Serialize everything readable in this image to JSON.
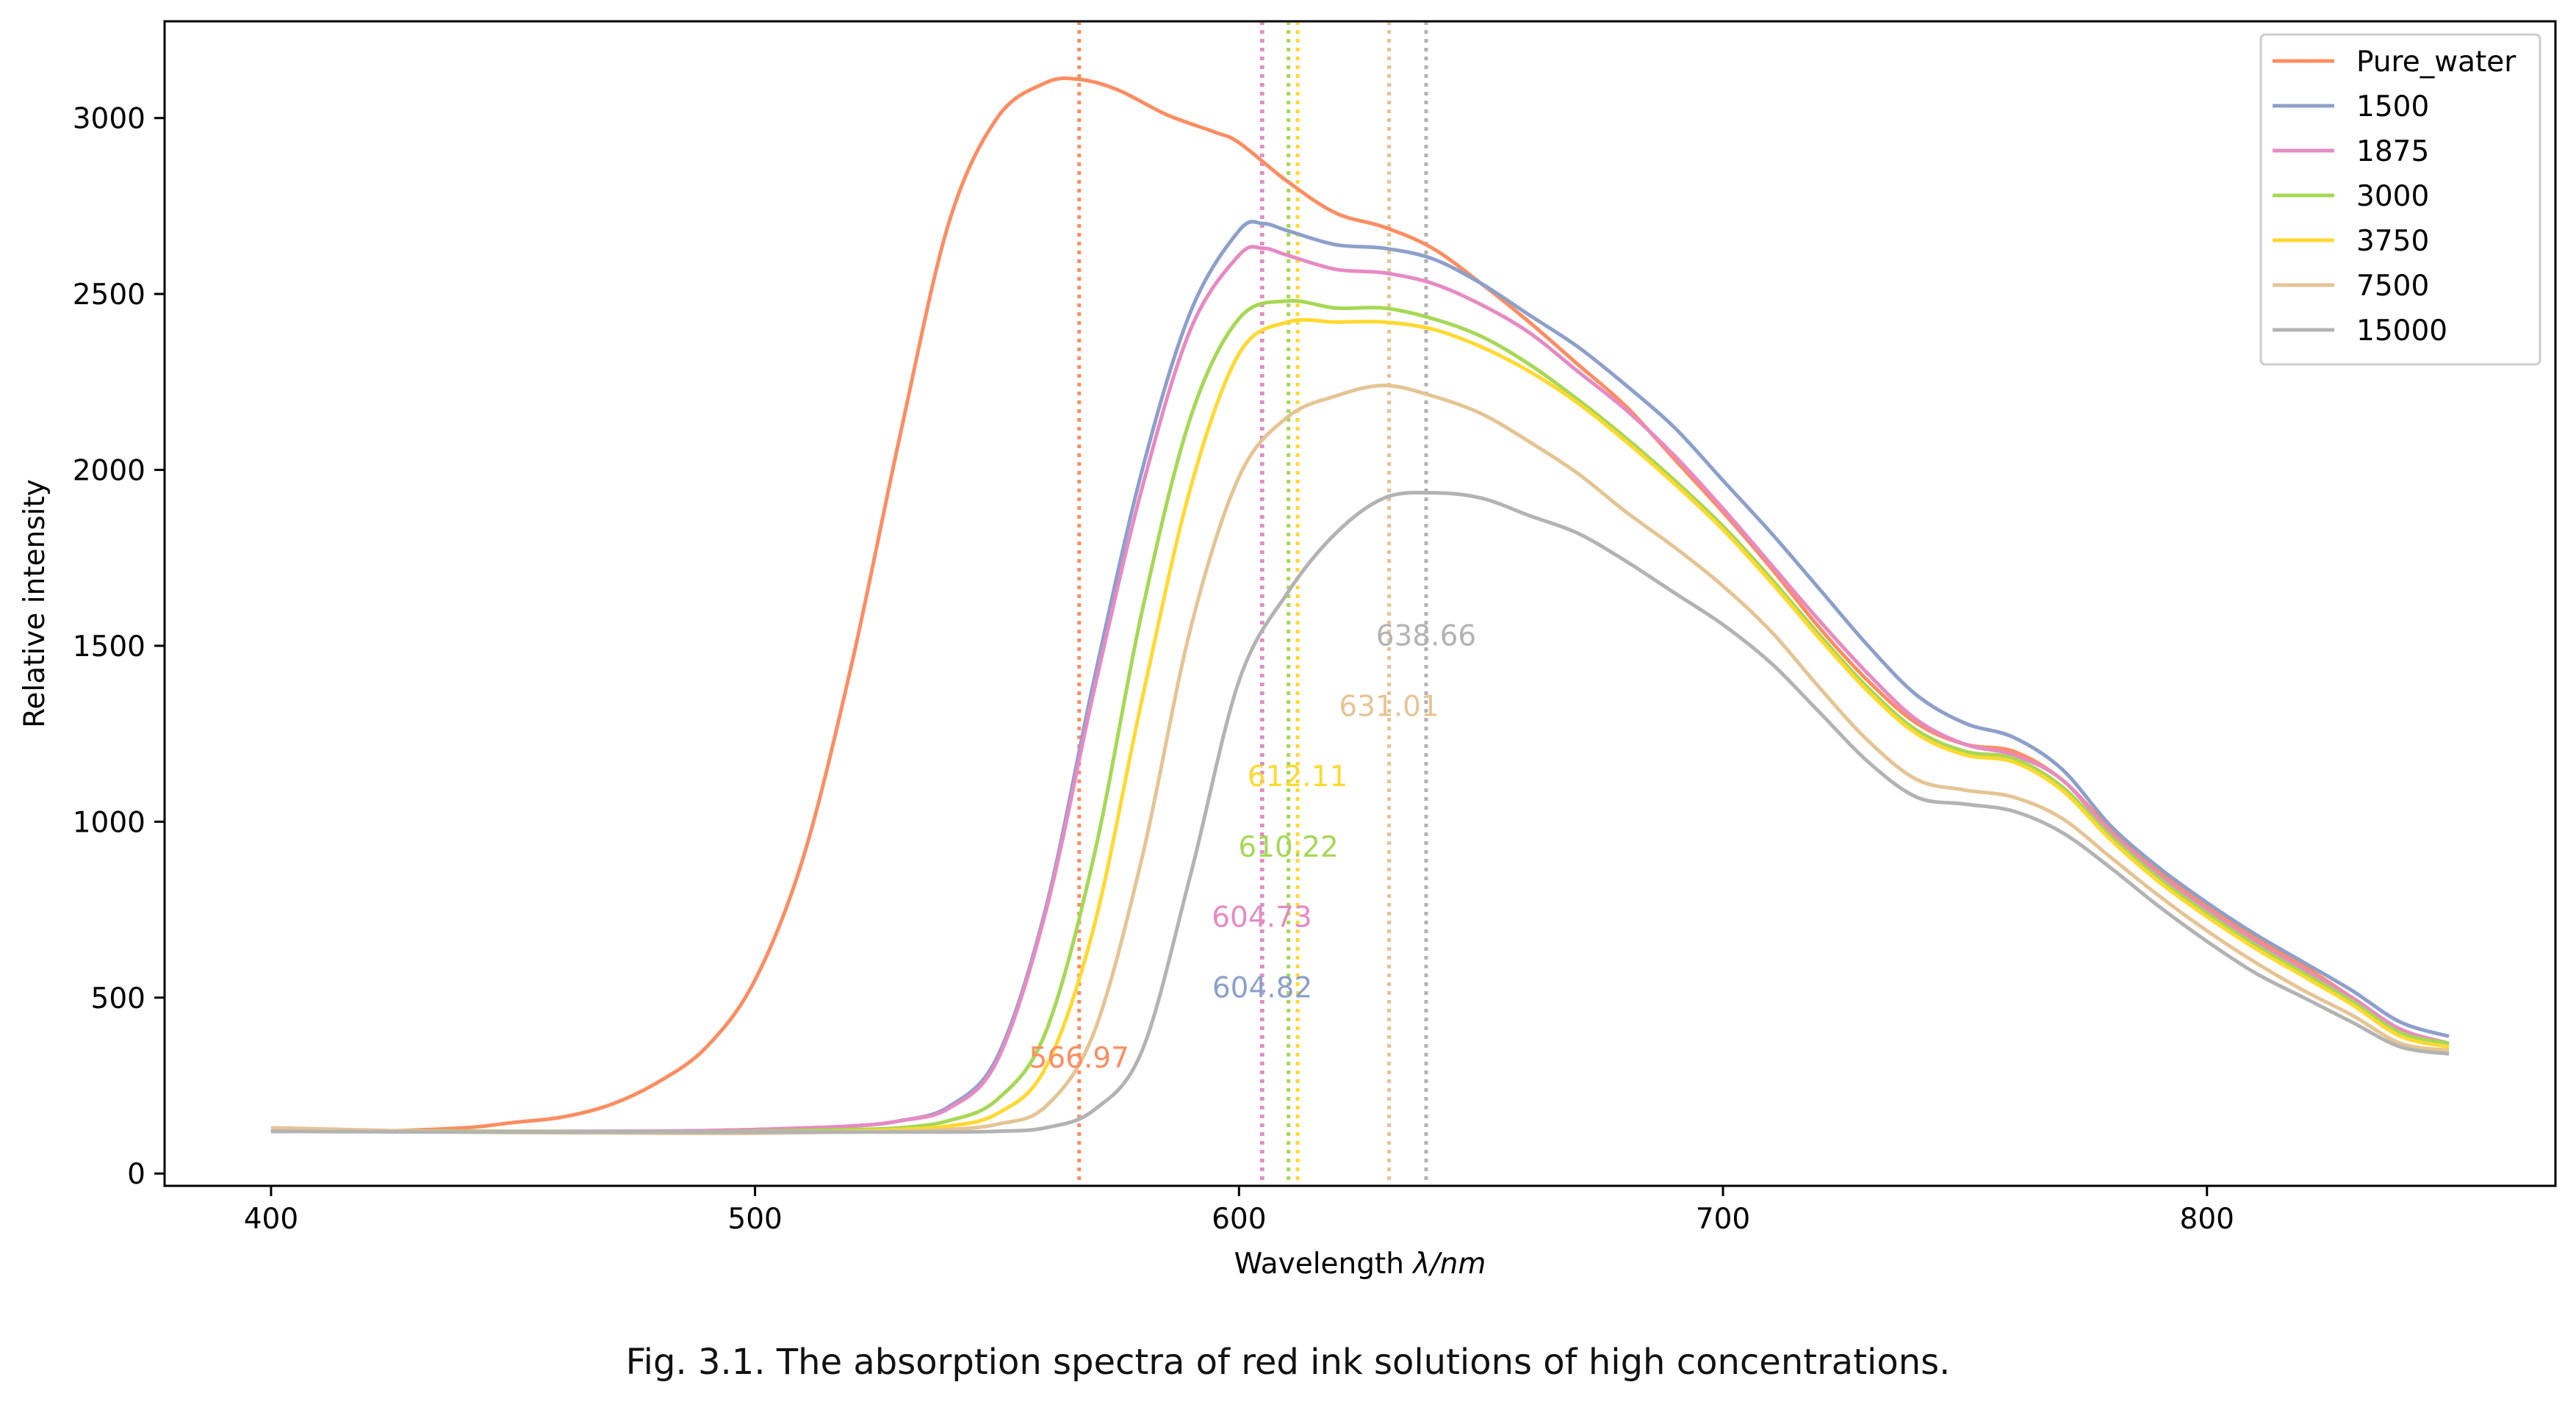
{
  "caption": "Fig. 3.1. The absorption spectra of red ink solutions of high concentrations.",
  "chart_data": {
    "type": "line",
    "title": "",
    "xlabel": "Wavelength λ/nm",
    "xlabel_plain": "Wavelength ",
    "xlabel_math": "λ/nm",
    "ylabel": "Relative intensity",
    "xlim": [
      378,
      872
    ],
    "ylim": [
      -35,
      3275
    ],
    "xticks": [
      400,
      500,
      600,
      700,
      800
    ],
    "yticks": [
      0,
      500,
      1000,
      1500,
      2000,
      2500,
      3000
    ],
    "grid": false,
    "legend_position": "top-right",
    "series": [
      {
        "name": "Pure_water",
        "color": "#fc8d62",
        "peak": 566.97,
        "peak_label": "566.97",
        "label_y": 330,
        "points": [
          [
            400,
            120
          ],
          [
            420,
            120
          ],
          [
            440,
            130
          ],
          [
            450,
            145
          ],
          [
            460,
            160
          ],
          [
            470,
            195
          ],
          [
            480,
            260
          ],
          [
            490,
            360
          ],
          [
            500,
            550
          ],
          [
            510,
            900
          ],
          [
            520,
            1450
          ],
          [
            530,
            2100
          ],
          [
            540,
            2700
          ],
          [
            550,
            3000
          ],
          [
            560,
            3100
          ],
          [
            567,
            3110
          ],
          [
            575,
            3080
          ],
          [
            585,
            3010
          ],
          [
            595,
            2960
          ],
          [
            600,
            2930
          ],
          [
            610,
            2820
          ],
          [
            620,
            2730
          ],
          [
            630,
            2690
          ],
          [
            640,
            2630
          ],
          [
            650,
            2530
          ],
          [
            660,
            2420
          ],
          [
            670,
            2300
          ],
          [
            680,
            2180
          ],
          [
            690,
            2030
          ],
          [
            700,
            1880
          ],
          [
            710,
            1720
          ],
          [
            720,
            1550
          ],
          [
            730,
            1400
          ],
          [
            740,
            1280
          ],
          [
            750,
            1220
          ],
          [
            760,
            1200
          ],
          [
            770,
            1120
          ],
          [
            780,
            980
          ],
          [
            790,
            860
          ],
          [
            800,
            760
          ],
          [
            810,
            670
          ],
          [
            820,
            590
          ],
          [
            830,
            500
          ],
          [
            840,
            410
          ],
          [
            850,
            370
          ]
        ]
      },
      {
        "name": "1500",
        "color": "#8da0cb",
        "peak": 604.82,
        "peak_label": "604.82",
        "label_y": 530,
        "points": [
          [
            400,
            120
          ],
          [
            440,
            120
          ],
          [
            480,
            120
          ],
          [
            500,
            125
          ],
          [
            520,
            135
          ],
          [
            530,
            150
          ],
          [
            540,
            190
          ],
          [
            550,
            330
          ],
          [
            560,
            750
          ],
          [
            570,
            1400
          ],
          [
            580,
            2000
          ],
          [
            590,
            2450
          ],
          [
            600,
            2680
          ],
          [
            605,
            2700
          ],
          [
            610,
            2680
          ],
          [
            620,
            2640
          ],
          [
            630,
            2630
          ],
          [
            640,
            2600
          ],
          [
            650,
            2530
          ],
          [
            660,
            2440
          ],
          [
            670,
            2350
          ],
          [
            680,
            2240
          ],
          [
            690,
            2120
          ],
          [
            700,
            1970
          ],
          [
            710,
            1820
          ],
          [
            720,
            1660
          ],
          [
            730,
            1500
          ],
          [
            740,
            1360
          ],
          [
            750,
            1280
          ],
          [
            760,
            1240
          ],
          [
            770,
            1150
          ],
          [
            780,
            990
          ],
          [
            790,
            870
          ],
          [
            800,
            770
          ],
          [
            810,
            680
          ],
          [
            820,
            600
          ],
          [
            830,
            520
          ],
          [
            840,
            430
          ],
          [
            850,
            390
          ]
        ]
      },
      {
        "name": "1875",
        "color": "#e78ac3",
        "peak": 604.73,
        "peak_label": "604.73",
        "label_y": 730,
        "points": [
          [
            400,
            125
          ],
          [
            440,
            120
          ],
          [
            480,
            120
          ],
          [
            500,
            125
          ],
          [
            520,
            135
          ],
          [
            530,
            150
          ],
          [
            540,
            185
          ],
          [
            550,
            320
          ],
          [
            560,
            740
          ],
          [
            570,
            1370
          ],
          [
            580,
            1950
          ],
          [
            590,
            2400
          ],
          [
            600,
            2610
          ],
          [
            605,
            2630
          ],
          [
            610,
            2610
          ],
          [
            620,
            2570
          ],
          [
            630,
            2560
          ],
          [
            640,
            2530
          ],
          [
            650,
            2470
          ],
          [
            660,
            2390
          ],
          [
            670,
            2280
          ],
          [
            680,
            2170
          ],
          [
            690,
            2040
          ],
          [
            700,
            1890
          ],
          [
            710,
            1730
          ],
          [
            720,
            1570
          ],
          [
            730,
            1420
          ],
          [
            740,
            1290
          ],
          [
            750,
            1220
          ],
          [
            760,
            1190
          ],
          [
            770,
            1120
          ],
          [
            780,
            970
          ],
          [
            790,
            850
          ],
          [
            800,
            750
          ],
          [
            810,
            660
          ],
          [
            820,
            580
          ],
          [
            830,
            500
          ],
          [
            840,
            410
          ],
          [
            850,
            370
          ]
        ]
      },
      {
        "name": "3000",
        "color": "#a6d854",
        "peak": 610.22,
        "peak_label": "610.22",
        "label_y": 930,
        "points": [
          [
            400,
            125
          ],
          [
            440,
            120
          ],
          [
            480,
            118
          ],
          [
            500,
            120
          ],
          [
            520,
            125
          ],
          [
            530,
            130
          ],
          [
            540,
            150
          ],
          [
            550,
            210
          ],
          [
            560,
            400
          ],
          [
            570,
            900
          ],
          [
            580,
            1600
          ],
          [
            590,
            2150
          ],
          [
            600,
            2430
          ],
          [
            610,
            2480
          ],
          [
            620,
            2460
          ],
          [
            630,
            2460
          ],
          [
            640,
            2430
          ],
          [
            650,
            2380
          ],
          [
            660,
            2300
          ],
          [
            670,
            2200
          ],
          [
            680,
            2090
          ],
          [
            690,
            1970
          ],
          [
            700,
            1840
          ],
          [
            710,
            1690
          ],
          [
            720,
            1530
          ],
          [
            730,
            1380
          ],
          [
            740,
            1260
          ],
          [
            750,
            1200
          ],
          [
            760,
            1180
          ],
          [
            770,
            1100
          ],
          [
            780,
            960
          ],
          [
            790,
            840
          ],
          [
            800,
            740
          ],
          [
            810,
            650
          ],
          [
            820,
            570
          ],
          [
            830,
            490
          ],
          [
            840,
            400
          ],
          [
            850,
            370
          ]
        ]
      },
      {
        "name": "3750",
        "color": "#ffd92f",
        "peak": 612.11,
        "peak_label": "612.11",
        "label_y": 1130,
        "points": [
          [
            400,
            125
          ],
          [
            440,
            118
          ],
          [
            480,
            115
          ],
          [
            500,
            115
          ],
          [
            520,
            120
          ],
          [
            530,
            125
          ],
          [
            540,
            135
          ],
          [
            550,
            170
          ],
          [
            560,
            300
          ],
          [
            570,
            700
          ],
          [
            580,
            1350
          ],
          [
            590,
            1950
          ],
          [
            600,
            2330
          ],
          [
            610,
            2420
          ],
          [
            620,
            2420
          ],
          [
            630,
            2420
          ],
          [
            640,
            2400
          ],
          [
            650,
            2350
          ],
          [
            660,
            2280
          ],
          [
            670,
            2190
          ],
          [
            680,
            2080
          ],
          [
            690,
            1960
          ],
          [
            700,
            1830
          ],
          [
            710,
            1680
          ],
          [
            720,
            1520
          ],
          [
            730,
            1370
          ],
          [
            740,
            1250
          ],
          [
            750,
            1190
          ],
          [
            760,
            1170
          ],
          [
            770,
            1090
          ],
          [
            780,
            950
          ],
          [
            790,
            830
          ],
          [
            800,
            730
          ],
          [
            810,
            640
          ],
          [
            820,
            560
          ],
          [
            830,
            480
          ],
          [
            840,
            390
          ],
          [
            850,
            360
          ]
        ]
      },
      {
        "name": "7500",
        "color": "#e5c494",
        "peak": 631.01,
        "peak_label": "631.01",
        "label_y": 1330,
        "points": [
          [
            400,
            130
          ],
          [
            440,
            118
          ],
          [
            480,
            115
          ],
          [
            500,
            115
          ],
          [
            520,
            118
          ],
          [
            530,
            120
          ],
          [
            540,
            125
          ],
          [
            550,
            140
          ],
          [
            560,
            190
          ],
          [
            570,
            400
          ],
          [
            580,
            900
          ],
          [
            590,
            1550
          ],
          [
            600,
            1980
          ],
          [
            610,
            2150
          ],
          [
            620,
            2210
          ],
          [
            630,
            2240
          ],
          [
            640,
            2210
          ],
          [
            650,
            2160
          ],
          [
            660,
            2080
          ],
          [
            670,
            1990
          ],
          [
            680,
            1880
          ],
          [
            690,
            1780
          ],
          [
            700,
            1670
          ],
          [
            710,
            1540
          ],
          [
            720,
            1380
          ],
          [
            730,
            1230
          ],
          [
            740,
            1120
          ],
          [
            750,
            1090
          ],
          [
            760,
            1070
          ],
          [
            770,
            1010
          ],
          [
            780,
            900
          ],
          [
            790,
            790
          ],
          [
            800,
            690
          ],
          [
            810,
            600
          ],
          [
            820,
            520
          ],
          [
            830,
            450
          ],
          [
            840,
            370
          ],
          [
            850,
            350
          ]
        ]
      },
      {
        "name": "15000",
        "color": "#b3b3b3",
        "peak": 638.66,
        "peak_label": "638.66",
        "label_y": 1530,
        "points": [
          [
            400,
            120
          ],
          [
            440,
            118
          ],
          [
            480,
            118
          ],
          [
            500,
            118
          ],
          [
            520,
            118
          ],
          [
            540,
            118
          ],
          [
            550,
            120
          ],
          [
            560,
            130
          ],
          [
            570,
            180
          ],
          [
            580,
            350
          ],
          [
            590,
            850
          ],
          [
            600,
            1400
          ],
          [
            610,
            1650
          ],
          [
            620,
            1820
          ],
          [
            630,
            1920
          ],
          [
            640,
            1935
          ],
          [
            650,
            1920
          ],
          [
            660,
            1870
          ],
          [
            670,
            1820
          ],
          [
            680,
            1740
          ],
          [
            690,
            1650
          ],
          [
            700,
            1560
          ],
          [
            710,
            1450
          ],
          [
            720,
            1310
          ],
          [
            730,
            1170
          ],
          [
            740,
            1070
          ],
          [
            750,
            1050
          ],
          [
            760,
            1030
          ],
          [
            770,
            970
          ],
          [
            780,
            870
          ],
          [
            790,
            760
          ],
          [
            800,
            660
          ],
          [
            810,
            570
          ],
          [
            820,
            500
          ],
          [
            830,
            430
          ],
          [
            840,
            360
          ],
          [
            850,
            340
          ]
        ]
      }
    ]
  }
}
